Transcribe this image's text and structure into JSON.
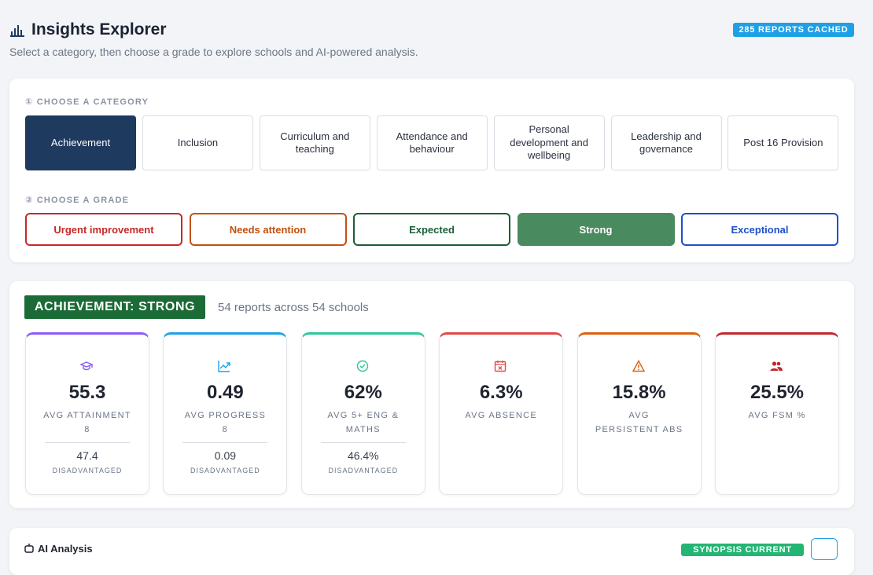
{
  "header": {
    "title": "Insights Explorer",
    "subtitle": "Select a category, then choose a grade to explore schools and AI-powered analysis.",
    "badge": "285 REPORTS CACHED"
  },
  "category_step": {
    "label": "① CHOOSE A CATEGORY",
    "selected": 0,
    "options": [
      "Achievement",
      "Inclusion",
      "Curriculum and teaching",
      "Attendance and behaviour",
      "Personal development and wellbeing",
      "Leadership and governance",
      "Post 16 Provision"
    ]
  },
  "grade_step": {
    "label": "② CHOOSE A GRADE",
    "selected": 3,
    "options": [
      "Urgent improvement",
      "Needs attention",
      "Expected",
      "Strong",
      "Exceptional"
    ]
  },
  "results": {
    "tag": "ACHIEVEMENT: STRONG",
    "summary": "54 reports across 54 schools",
    "stats": [
      {
        "value": "55.3",
        "label": "AVG ATTAINMENT 8",
        "sub_value": "47.4",
        "sub_label": "DISADVANTAGED"
      },
      {
        "value": "0.49",
        "label": "AVG PROGRESS 8",
        "sub_value": "0.09",
        "sub_label": "DISADVANTAGED"
      },
      {
        "value": "62%",
        "label": "AVG 5+ ENG & MATHS",
        "sub_value": "46.4%",
        "sub_label": "DISADVANTAGED"
      },
      {
        "value": "6.3%",
        "label": "AVG ABSENCE"
      },
      {
        "value": "15.8%",
        "label": "AVG PERSISTENT ABS"
      },
      {
        "value": "25.5%",
        "label": "AVG FSM %"
      }
    ]
  },
  "analysis": {
    "title": "AI Analysis",
    "badge": "SYNOPSIS CURRENT"
  }
}
